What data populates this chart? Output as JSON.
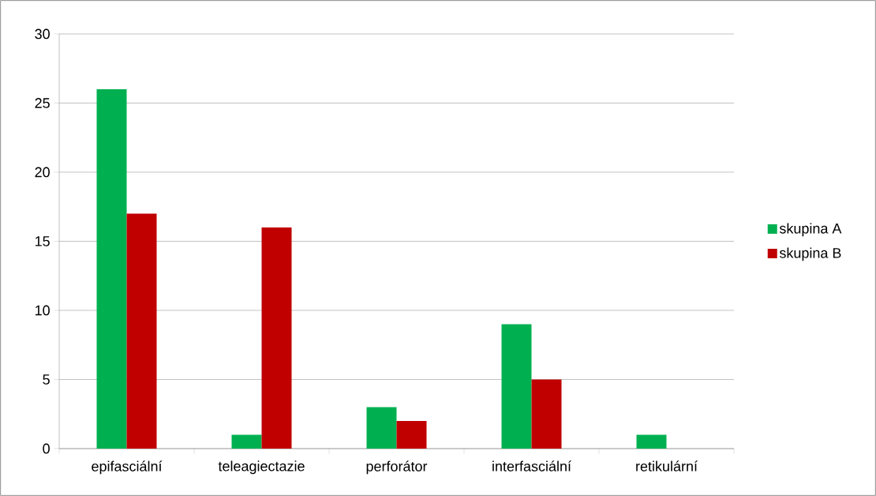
{
  "chart_data": {
    "type": "bar",
    "categories": [
      "epifasciální",
      "teleagiectazie",
      "perforátor",
      "interfasciální",
      "retikulární"
    ],
    "series": [
      {
        "name": "skupina A",
        "color": "#00b050",
        "values": [
          26,
          1,
          3,
          9,
          1
        ]
      },
      {
        "name": "skupina B",
        "color": "#c00000",
        "values": [
          17,
          16,
          2,
          5,
          0
        ]
      }
    ],
    "ylim": [
      0,
      30
    ],
    "yticks": [
      0,
      5,
      10,
      15,
      20,
      25,
      30
    ],
    "grid": "y",
    "legend": "right"
  }
}
